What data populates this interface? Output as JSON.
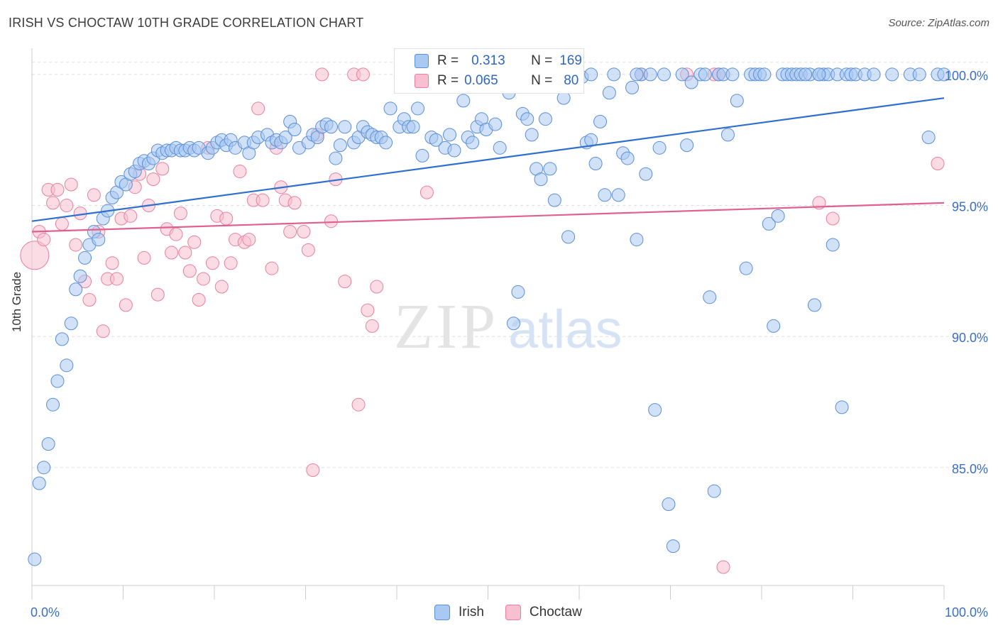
{
  "title": "IRISH VS CHOCTAW 10TH GRADE CORRELATION CHART",
  "source": "Source: ZipAtlas.com",
  "watermark": {
    "zip": "ZIP",
    "atlas": "atlas"
  },
  "colors": {
    "irish_fill": "#a9c8f2",
    "irish_stroke": "#5b8fd6",
    "irish_line": "#2f6fcf",
    "choctaw_fill": "#f7bfcf",
    "choctaw_stroke": "#e87fa0",
    "choctaw_line": "#e06090",
    "grid": "#dddddd",
    "axis_text": "#3a6fc4"
  },
  "legend": {
    "rows": [
      {
        "r_label": "R =",
        "r_value": "0.313",
        "n_label": "N =",
        "n_value": "169"
      },
      {
        "r_label": "R =",
        "r_value": "0.065",
        "n_label": "N =",
        "n_value": "80"
      }
    ]
  },
  "bottom_legend": {
    "irish": "Irish",
    "choctaw": "Choctaw"
  },
  "chart_data": {
    "type": "scatter",
    "title": "IRISH VS CHOCTAW 10TH GRADE CORRELATION CHART",
    "xlabel": "",
    "ylabel": "10th Grade",
    "xlim": [
      0,
      100
    ],
    "ylim": [
      80.5,
      101.0
    ],
    "x_tick_labels": [
      "0.0%",
      "100.0%"
    ],
    "y_ticks": [
      85,
      90,
      95,
      100
    ],
    "y_tick_labels": [
      "85.0%",
      "90.0%",
      "95.0%",
      "100.0%"
    ],
    "grid": true,
    "series": [
      {
        "name": "Irish",
        "trend": {
          "x": [
            0,
            100
          ],
          "y": [
            94.4,
            99.1
          ]
        },
        "points": [
          [
            0.3,
            81.5
          ],
          [
            0.8,
            84.4
          ],
          [
            1.3,
            85.0
          ],
          [
            1.8,
            85.9
          ],
          [
            2.3,
            87.4
          ],
          [
            2.8,
            88.3
          ],
          [
            3.3,
            89.9
          ],
          [
            3.8,
            88.9
          ],
          [
            4.3,
            90.5
          ],
          [
            4.8,
            91.8
          ],
          [
            5.3,
            92.3
          ],
          [
            5.8,
            93.0
          ],
          [
            6.3,
            93.5
          ],
          [
            6.8,
            94.0
          ],
          [
            7.3,
            93.7
          ],
          [
            7.8,
            94.5
          ],
          [
            8.3,
            94.8
          ],
          [
            8.8,
            95.3
          ],
          [
            9.3,
            95.5
          ],
          [
            9.8,
            95.9
          ],
          [
            10.3,
            95.8
          ],
          [
            10.8,
            96.2
          ],
          [
            11.3,
            96.3
          ],
          [
            11.8,
            96.6
          ],
          [
            12.3,
            96.7
          ],
          [
            12.8,
            96.6
          ],
          [
            13.3,
            96.8
          ],
          [
            13.8,
            97.1
          ],
          [
            14.3,
            97.0
          ],
          [
            14.8,
            97.1
          ],
          [
            15.3,
            97.1
          ],
          [
            15.8,
            97.2
          ],
          [
            16.3,
            97.1
          ],
          [
            16.8,
            97.1
          ],
          [
            17.3,
            97.2
          ],
          [
            17.8,
            97.1
          ],
          [
            18.3,
            97.2
          ],
          [
            19.3,
            97.0
          ],
          [
            19.8,
            97.2
          ],
          [
            20.3,
            97.4
          ],
          [
            20.8,
            97.5
          ],
          [
            21.3,
            97.3
          ],
          [
            21.8,
            97.5
          ],
          [
            22.3,
            97.2
          ],
          [
            23.3,
            97.4
          ],
          [
            23.8,
            97.0
          ],
          [
            24.3,
            97.4
          ],
          [
            24.8,
            97.6
          ],
          [
            25.8,
            97.7
          ],
          [
            26.3,
            97.4
          ],
          [
            26.8,
            97.5
          ],
          [
            27.3,
            97.4
          ],
          [
            27.8,
            97.6
          ],
          [
            28.3,
            98.2
          ],
          [
            28.8,
            97.9
          ],
          [
            29.3,
            97.2
          ],
          [
            30.3,
            97.4
          ],
          [
            30.8,
            97.7
          ],
          [
            31.3,
            97.6
          ],
          [
            31.8,
            98.0
          ],
          [
            32.3,
            98.1
          ],
          [
            32.8,
            98.0
          ],
          [
            33.3,
            96.8
          ],
          [
            33.8,
            97.3
          ],
          [
            34.3,
            98.0
          ],
          [
            35.3,
            97.4
          ],
          [
            35.8,
            97.6
          ],
          [
            36.3,
            98.0
          ],
          [
            36.8,
            97.8
          ],
          [
            37.3,
            97.7
          ],
          [
            37.8,
            97.6
          ],
          [
            38.3,
            97.6
          ],
          [
            38.8,
            97.4
          ],
          [
            39.3,
            98.7
          ],
          [
            40.3,
            98.0
          ],
          [
            40.8,
            98.3
          ],
          [
            41.3,
            98.0
          ],
          [
            41.8,
            98.0
          ],
          [
            42.3,
            98.7
          ],
          [
            42.8,
            96.9
          ],
          [
            43.3,
            99.8
          ],
          [
            43.8,
            97.6
          ],
          [
            44.3,
            97.5
          ],
          [
            45.3,
            97.2
          ],
          [
            45.8,
            97.7
          ],
          [
            46.3,
            97.1
          ],
          [
            47.3,
            99.0
          ],
          [
            47.8,
            97.6
          ],
          [
            48.3,
            97.4
          ],
          [
            48.8,
            98.0
          ],
          [
            49.3,
            98.3
          ],
          [
            49.8,
            97.9
          ],
          [
            50.8,
            98.1
          ],
          [
            51.3,
            97.2
          ],
          [
            51.8,
            99.8
          ],
          [
            52.3,
            99.3
          ],
          [
            52.8,
            90.5
          ],
          [
            53.3,
            91.7
          ],
          [
            53.8,
            98.5
          ],
          [
            54.3,
            98.3
          ],
          [
            54.8,
            97.7
          ],
          [
            55.3,
            96.4
          ],
          [
            55.8,
            96.0
          ],
          [
            56.3,
            98.3
          ],
          [
            56.8,
            96.4
          ],
          [
            57.3,
            95.2
          ],
          [
            58.3,
            99.1
          ],
          [
            58.8,
            93.8
          ],
          [
            59.8,
            99.8
          ],
          [
            60.3,
            99.9
          ],
          [
            60.8,
            97.4
          ],
          [
            61.3,
            97.5
          ],
          [
            61.8,
            96.6
          ],
          [
            62.3,
            98.2
          ],
          [
            62.8,
            95.4
          ],
          [
            63.3,
            99.3
          ],
          [
            64.3,
            95.4
          ],
          [
            64.8,
            97.0
          ],
          [
            65.3,
            96.8
          ],
          [
            65.8,
            99.5
          ],
          [
            66.3,
            93.7
          ],
          [
            66.8,
            100.0
          ],
          [
            67.3,
            96.2
          ],
          [
            67.8,
            100.0
          ],
          [
            68.3,
            87.2
          ],
          [
            68.8,
            97.2
          ],
          [
            69.3,
            100.0
          ],
          [
            69.8,
            83.6
          ],
          [
            70.3,
            82.0
          ],
          [
            71.3,
            100.0
          ],
          [
            71.8,
            97.3
          ],
          [
            72.3,
            99.7
          ],
          [
            73.3,
            100.0
          ],
          [
            73.8,
            100.0
          ],
          [
            74.3,
            91.5
          ],
          [
            74.8,
            84.1
          ],
          [
            75.3,
            100.0
          ],
          [
            75.8,
            100.0
          ],
          [
            76.3,
            97.7
          ],
          [
            76.8,
            100.0
          ],
          [
            77.3,
            99.0
          ],
          [
            78.3,
            92.6
          ],
          [
            78.8,
            100.0
          ],
          [
            79.3,
            100.0
          ],
          [
            79.8,
            100.0
          ],
          [
            80.3,
            100.0
          ],
          [
            80.8,
            94.3
          ],
          [
            81.3,
            90.4
          ],
          [
            81.8,
            94.6
          ],
          [
            82.3,
            100.0
          ],
          [
            82.8,
            100.0
          ],
          [
            83.3,
            100.0
          ],
          [
            83.8,
            100.0
          ],
          [
            84.3,
            100.0
          ],
          [
            85.3,
            100.0
          ],
          [
            85.8,
            91.2
          ],
          [
            86.3,
            100.0
          ],
          [
            86.8,
            100.0
          ],
          [
            87.3,
            100.0
          ],
          [
            87.8,
            93.5
          ],
          [
            88.3,
            100.0
          ],
          [
            88.8,
            87.3
          ],
          [
            89.3,
            100.0
          ],
          [
            89.8,
            100.0
          ],
          [
            90.3,
            100.0
          ],
          [
            91.3,
            100.0
          ],
          [
            92.3,
            100.0
          ],
          [
            94.3,
            100.0
          ],
          [
            96.3,
            100.0
          ],
          [
            97.3,
            100.0
          ],
          [
            98.3,
            97.6
          ],
          [
            99.3,
            100.0
          ],
          [
            100.0,
            100.0
          ],
          [
            57.8,
            100.0
          ],
          [
            63.8,
            100.0
          ],
          [
            61.3,
            100.0
          ],
          [
            86.3,
            100.0
          ],
          [
            84.8,
            100.0
          ],
          [
            66.3,
            100.0
          ]
        ]
      },
      {
        "name": "Choctaw",
        "trend": {
          "x": [
            0,
            100
          ],
          "y": [
            94.0,
            95.1
          ]
        },
        "points": [
          [
            0.3,
            93.1
          ],
          [
            0.8,
            94.0
          ],
          [
            1.3,
            93.7
          ],
          [
            1.8,
            95.6
          ],
          [
            2.3,
            95.1
          ],
          [
            2.8,
            95.6
          ],
          [
            3.3,
            94.3
          ],
          [
            3.8,
            95.0
          ],
          [
            4.3,
            95.8
          ],
          [
            4.8,
            93.5
          ],
          [
            5.3,
            94.7
          ],
          [
            5.8,
            92.1
          ],
          [
            6.3,
            91.4
          ],
          [
            6.8,
            95.4
          ],
          [
            7.3,
            94.0
          ],
          [
            7.8,
            90.2
          ],
          [
            8.3,
            92.2
          ],
          [
            8.8,
            92.8
          ],
          [
            9.3,
            92.2
          ],
          [
            9.8,
            94.5
          ],
          [
            10.3,
            91.2
          ],
          [
            10.8,
            94.6
          ],
          [
            11.3,
            95.7
          ],
          [
            11.8,
            96.2
          ],
          [
            12.3,
            93.0
          ],
          [
            12.8,
            95.0
          ],
          [
            13.3,
            96.0
          ],
          [
            13.8,
            91.6
          ],
          [
            14.3,
            96.4
          ],
          [
            14.8,
            94.1
          ],
          [
            15.3,
            93.2
          ],
          [
            15.8,
            93.9
          ],
          [
            16.3,
            94.7
          ],
          [
            16.8,
            93.2
          ],
          [
            17.3,
            92.5
          ],
          [
            17.8,
            93.6
          ],
          [
            18.3,
            91.4
          ],
          [
            18.8,
            92.2
          ],
          [
            19.3,
            97.2
          ],
          [
            19.8,
            92.8
          ],
          [
            20.3,
            94.6
          ],
          [
            20.8,
            91.9
          ],
          [
            21.3,
            94.5
          ],
          [
            21.8,
            92.8
          ],
          [
            22.3,
            93.7
          ],
          [
            22.8,
            96.3
          ],
          [
            23.3,
            93.6
          ],
          [
            23.8,
            93.7
          ],
          [
            24.3,
            95.2
          ],
          [
            24.8,
            98.7
          ],
          [
            25.3,
            95.2
          ],
          [
            26.3,
            92.6
          ],
          [
            26.8,
            97.2
          ],
          [
            27.3,
            95.7
          ],
          [
            27.8,
            95.2
          ],
          [
            28.3,
            94.0
          ],
          [
            28.8,
            95.1
          ],
          [
            29.8,
            94.0
          ],
          [
            30.3,
            93.3
          ],
          [
            30.8,
            84.9
          ],
          [
            31.3,
            97.7
          ],
          [
            31.8,
            100.0
          ],
          [
            32.8,
            94.4
          ],
          [
            33.3,
            96.0
          ],
          [
            34.3,
            92.1
          ],
          [
            35.3,
            100.0
          ],
          [
            35.8,
            87.4
          ],
          [
            36.3,
            100.0
          ],
          [
            36.8,
            91.0
          ],
          [
            37.3,
            90.4
          ],
          [
            37.8,
            91.9
          ],
          [
            43.3,
            95.5
          ],
          [
            56.3,
            100.0
          ],
          [
            66.8,
            100.0
          ],
          [
            71.8,
            100.0
          ],
          [
            74.8,
            100.0
          ],
          [
            75.3,
            100.0
          ],
          [
            75.8,
            81.2
          ],
          [
            86.3,
            95.1
          ],
          [
            87.8,
            94.5
          ],
          [
            99.3,
            96.6
          ]
        ]
      }
    ]
  }
}
